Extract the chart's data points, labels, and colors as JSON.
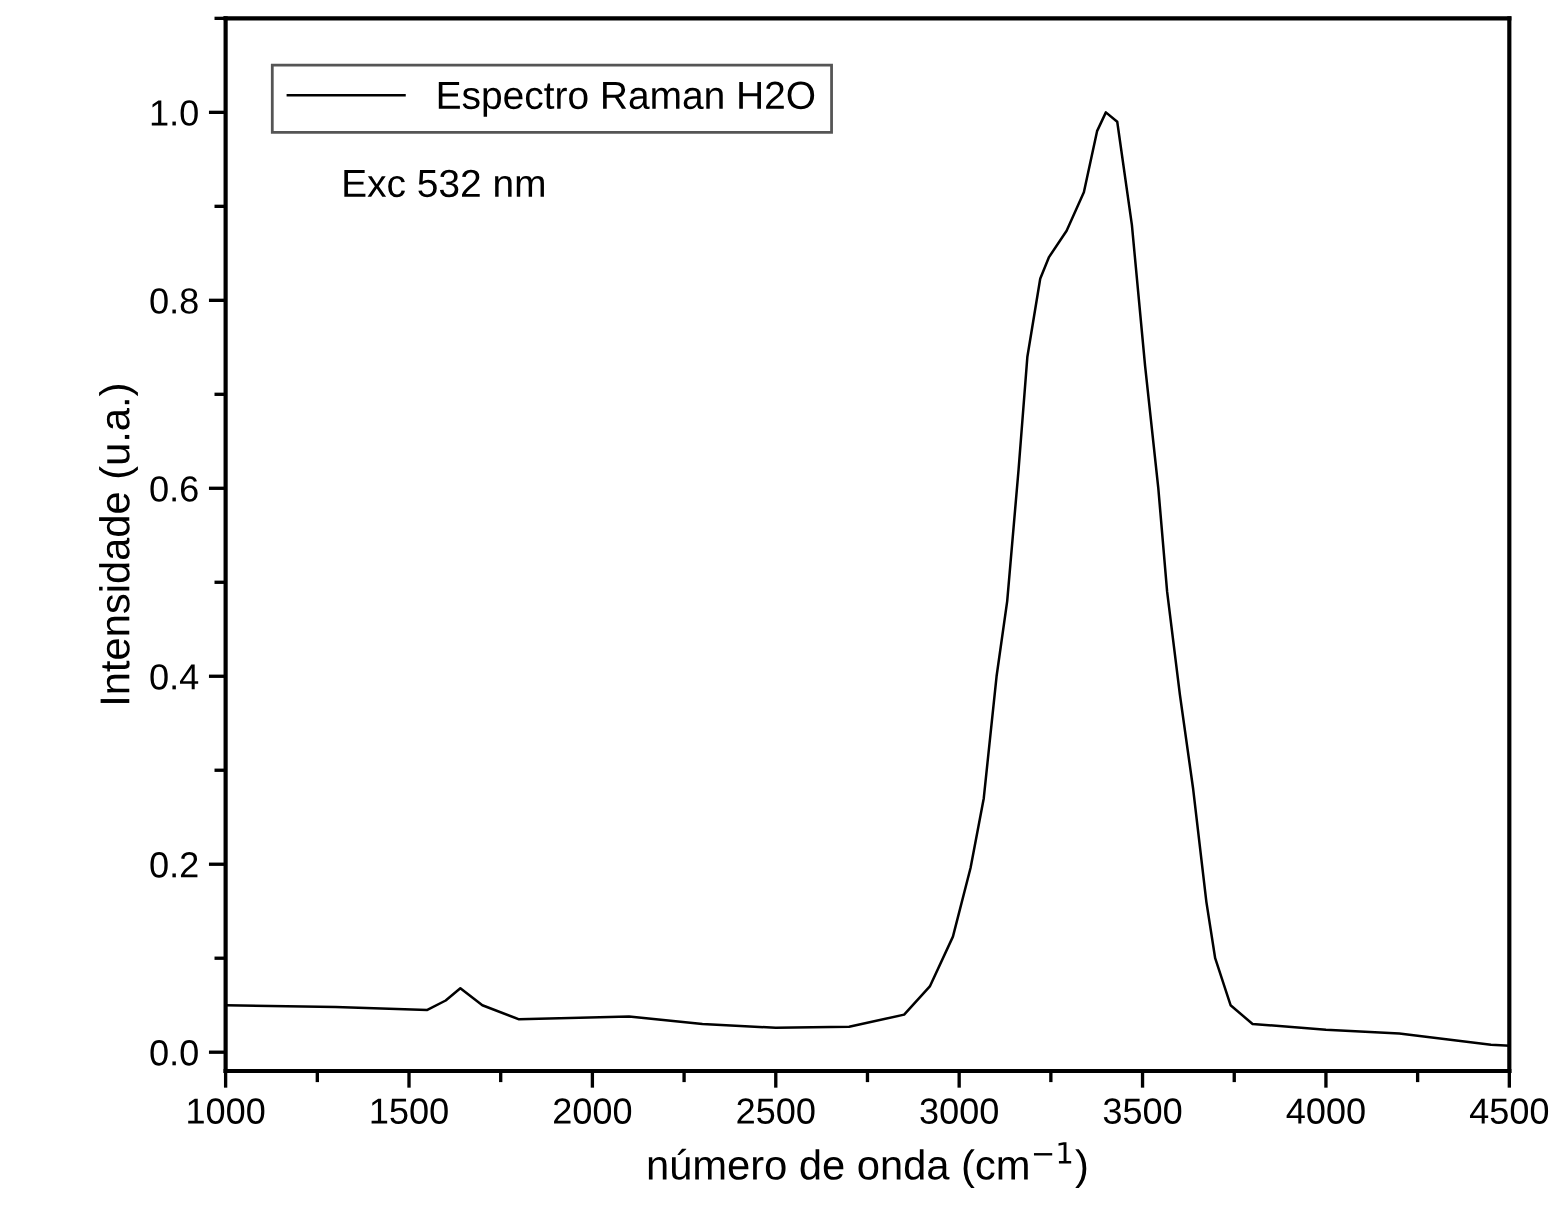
{
  "chart_data": {
    "type": "line",
    "xlabel": "número de onda (cm$^{−1}$)",
    "ylabel": "Intensidade (u.a.)",
    "annotations": [
      "Exc 532 nm"
    ],
    "xlim": [
      1000,
      4500
    ],
    "xticks": [
      1000,
      1500,
      2000,
      2500,
      3000,
      3500,
      4000,
      4500
    ],
    "ylim": [
      -0.02,
      1.1
    ],
    "yticks": [
      {
        "value": 0,
        "label": "0.0"
      },
      {
        "value": 0.2,
        "label": "0.2"
      },
      {
        "value": 0.4,
        "label": "0.4"
      },
      {
        "value": 0.6,
        "label": "0.6"
      },
      {
        "value": 0.8,
        "label": "0.8"
      },
      {
        "value": 1,
        "label": "1.0"
      }
    ],
    "legend": "top left",
    "grid": false,
    "marker": "none",
    "line_style": "solid",
    "series": [
      {
        "name": "Espectro Raman H2O",
        "color": "#000000",
        "x": [
          1000,
          1300,
          1550,
          1600,
          1640,
          1700,
          1800,
          2100,
          2300,
          2500,
          2700,
          2850,
          2920,
          2983,
          3031,
          3067,
          3102,
          3131,
          3162,
          3186,
          3221,
          3245,
          3293,
          3340,
          3376,
          3400,
          3431,
          3471,
          3507,
          3543,
          3567,
          3602,
          3638,
          3674,
          3698,
          3740,
          3800,
          4000,
          4200,
          4450,
          4500
        ],
        "values": [
          0.05,
          0.048,
          0.045,
          0.055,
          0.068,
          0.05,
          0.035,
          0.038,
          0.03,
          0.026,
          0.027,
          0.04,
          0.07,
          0.123,
          0.196,
          0.27,
          0.4,
          0.48,
          0.62,
          0.74,
          0.823,
          0.846,
          0.874,
          0.915,
          0.98,
          1.0,
          0.99,
          0.88,
          0.73,
          0.6,
          0.49,
          0.38,
          0.28,
          0.16,
          0.1,
          0.05,
          0.03,
          0.024,
          0.02,
          0.008,
          0.007
        ]
      }
    ]
  }
}
